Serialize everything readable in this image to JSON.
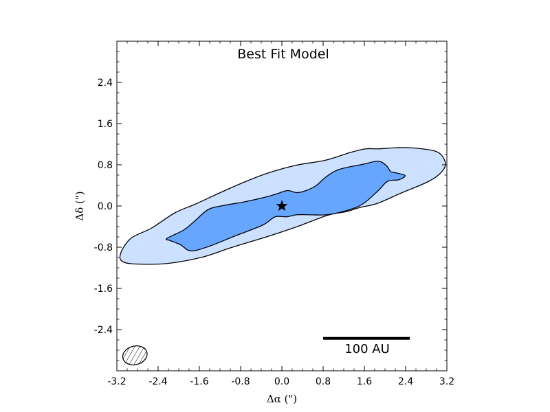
{
  "chart_data": {
    "type": "contour",
    "title": "Best Fit Model",
    "xlabel": "Δα (\")",
    "ylabel": "Δδ (\")",
    "xlim": [
      -3.2,
      3.2
    ],
    "ylim": [
      -3.2,
      3.2
    ],
    "x_ticks": [
      "-3.2",
      "-2.4",
      "-1.6",
      "-0.8",
      "0.0",
      "0.8",
      "1.6",
      "2.4",
      "3.2"
    ],
    "y_ticks": [
      "-2.4",
      "-1.6",
      "-0.8",
      "0.0",
      "0.8",
      "1.6",
      "2.4"
    ],
    "x_tick_values": [
      -3.2,
      -2.4,
      -1.6,
      -0.8,
      0.0,
      0.8,
      1.6,
      2.4,
      3.2
    ],
    "y_tick_values": [
      -2.4,
      -1.6,
      -0.8,
      0.0,
      0.8,
      1.6,
      2.4
    ],
    "levels": [
      {
        "name": "outer",
        "color": "#cce0ff",
        "points": [
          [
            -3.13,
            -0.93
          ],
          [
            -2.93,
            -0.63
          ],
          [
            -2.53,
            -0.43
          ],
          [
            -2.07,
            -0.13
          ],
          [
            -1.67,
            0.04
          ],
          [
            -1.13,
            0.29
          ],
          [
            -0.69,
            0.48
          ],
          [
            -0.27,
            0.64
          ],
          [
            0.27,
            0.79
          ],
          [
            0.85,
            0.89
          ],
          [
            1.33,
            1.04
          ],
          [
            1.63,
            1.11
          ],
          [
            1.87,
            1.11
          ],
          [
            2.19,
            1.13
          ],
          [
            2.51,
            1.13
          ],
          [
            2.99,
            1.06
          ],
          [
            3.16,
            0.88
          ],
          [
            3.13,
            0.7
          ],
          [
            2.87,
            0.49
          ],
          [
            2.31,
            0.25
          ],
          [
            1.85,
            0.05
          ],
          [
            1.51,
            -0.03
          ],
          [
            1.25,
            -0.11
          ],
          [
            0.89,
            -0.18
          ],
          [
            0.27,
            -0.41
          ],
          [
            -0.27,
            -0.59
          ],
          [
            -0.99,
            -0.81
          ],
          [
            -1.53,
            -0.99
          ],
          [
            -2.17,
            -1.11
          ],
          [
            -2.69,
            -1.13
          ],
          [
            -3.07,
            -1.09
          ]
        ]
      },
      {
        "name": "inner",
        "color": "#66a6ff",
        "points": [
          [
            -2.23,
            -0.63
          ],
          [
            -1.91,
            -0.47
          ],
          [
            -1.71,
            -0.31
          ],
          [
            -1.43,
            -0.07
          ],
          [
            -1.13,
            0.01
          ],
          [
            -0.73,
            0.08
          ],
          [
            -0.29,
            0.18
          ],
          [
            -0.09,
            0.24
          ],
          [
            0.11,
            0.3
          ],
          [
            0.29,
            0.26
          ],
          [
            0.47,
            0.3
          ],
          [
            0.67,
            0.4
          ],
          [
            0.85,
            0.56
          ],
          [
            1.11,
            0.71
          ],
          [
            1.57,
            0.81
          ],
          [
            1.87,
            0.87
          ],
          [
            2.03,
            0.78
          ],
          [
            2.11,
            0.67
          ],
          [
            2.23,
            0.64
          ],
          [
            2.39,
            0.59
          ],
          [
            2.27,
            0.51
          ],
          [
            2.05,
            0.48
          ],
          [
            1.87,
            0.3
          ],
          [
            1.57,
            0.04
          ],
          [
            1.25,
            -0.09
          ],
          [
            0.87,
            -0.17
          ],
          [
            0.53,
            -0.17
          ],
          [
            0.29,
            -0.17
          ],
          [
            0.09,
            -0.21
          ],
          [
            -0.13,
            -0.21
          ],
          [
            -0.37,
            -0.37
          ],
          [
            -0.93,
            -0.59
          ],
          [
            -1.43,
            -0.79
          ],
          [
            -1.77,
            -0.87
          ],
          [
            -1.97,
            -0.75
          ],
          [
            -2.17,
            -0.67
          ]
        ]
      }
    ],
    "star": [
      0.0,
      0.0
    ],
    "beam": {
      "x": -2.85,
      "y": -2.9,
      "major": 0.48,
      "minor": 0.36,
      "angle_deg": 15
    },
    "scalebar": {
      "label": "100 AU",
      "x_start": 0.8,
      "x_end": 2.48,
      "y": -2.57
    }
  }
}
